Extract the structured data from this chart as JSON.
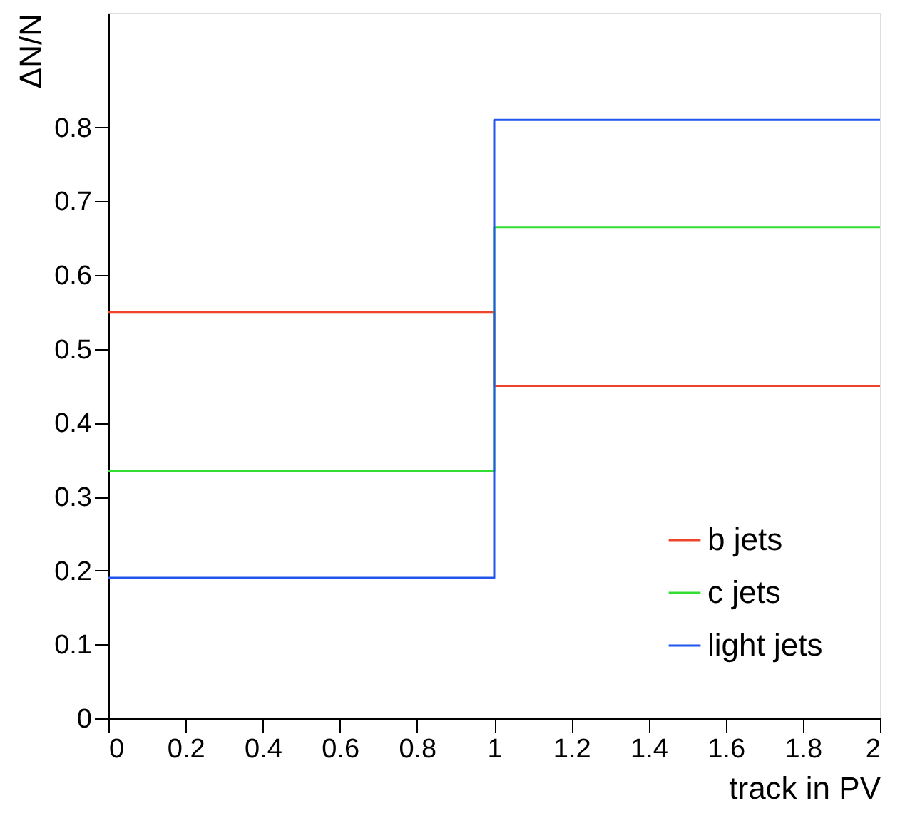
{
  "chart_data": {
    "type": "histogram",
    "xlabel": "track in PV",
    "ylabel": "ΔN/N",
    "bins": [
      0,
      1,
      2
    ],
    "series": [
      {
        "name": "b jets",
        "color": "#f0442a",
        "values": [
          0.55,
          0.45
        ]
      },
      {
        "name": "c jets",
        "color": "#33dd33",
        "values": [
          0.335,
          0.665
        ]
      },
      {
        "name": "light jets",
        "color": "#2255ee",
        "values": [
          0.19,
          0.81
        ]
      }
    ],
    "xlim": [
      0,
      2
    ],
    "xticks": [
      0,
      0.2,
      0.4,
      0.6,
      0.8,
      1,
      1.2,
      1.4,
      1.6,
      1.8,
      2
    ],
    "ylim": [
      0,
      0.955
    ],
    "yticks": [
      0,
      0.1,
      0.2,
      0.3,
      0.4,
      0.5,
      0.6,
      0.7,
      0.8
    ],
    "legend": "bottom right",
    "grid": false
  }
}
